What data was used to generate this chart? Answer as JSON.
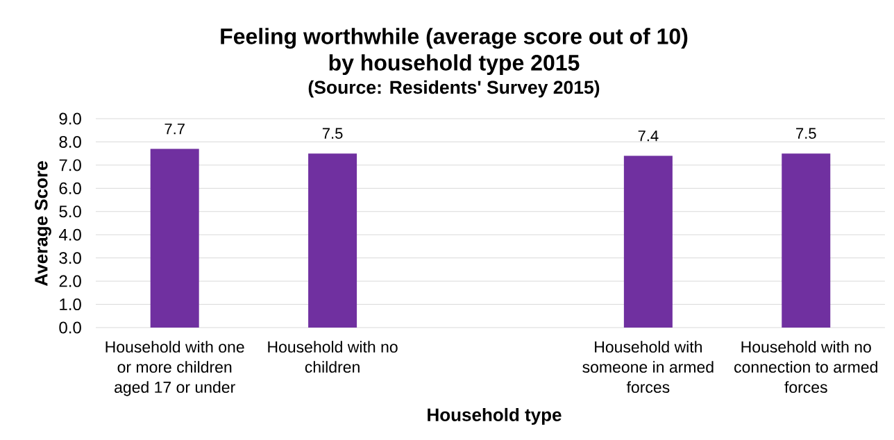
{
  "chart_data": {
    "type": "bar",
    "title": "Feeling worthwhile (average score out of 10) by household type 2015",
    "subtitle": "(Source: Residents' Survey 2015)",
    "xlabel": "Household type",
    "ylabel": "Average Score",
    "categories": [
      "Household with one or more children aged 17 or under",
      "Household with no children",
      null,
      "Household with someone in armed forces",
      "Household with no connection to armed forces"
    ],
    "values": [
      7.7,
      7.5,
      null,
      7.4,
      7.5
    ],
    "color": "#7030a0",
    "ylim": [
      0,
      9
    ],
    "yticks": [
      {
        "value": 0,
        "label": "0.0"
      },
      {
        "value": 1,
        "label": "1.0"
      },
      {
        "value": 2,
        "label": "2.0"
      },
      {
        "value": 3,
        "label": "3.0"
      },
      {
        "value": 4,
        "label": "4.0"
      },
      {
        "value": 5,
        "label": "5.0"
      },
      {
        "value": 6,
        "label": "6.0"
      },
      {
        "value": 7,
        "label": "7.0"
      },
      {
        "value": 8,
        "label": "8.0"
      },
      {
        "value": 9,
        "label": "9.0"
      }
    ],
    "grid": "y",
    "data_labels": true
  }
}
